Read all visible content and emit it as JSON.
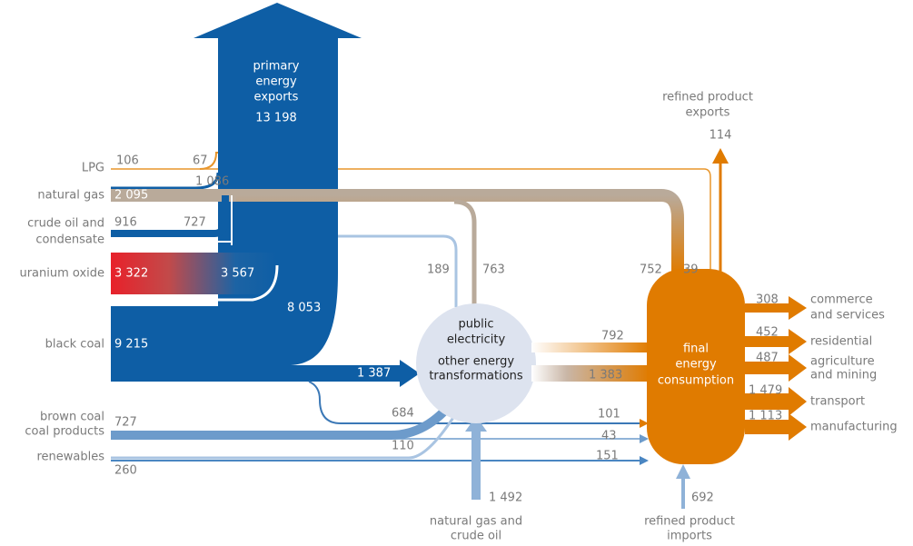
{
  "sources": [
    {
      "name": [
        "LPG"
      ],
      "value": "106"
    },
    {
      "name": [
        "natural gas"
      ],
      "value": "2 095"
    },
    {
      "name": [
        "crude oil and",
        "condensate"
      ],
      "value": "916"
    },
    {
      "name": [
        "uranium oxide"
      ],
      "value": "3 322"
    },
    {
      "name": [
        "black coal"
      ],
      "value": "9 215"
    },
    {
      "name": [
        "brown coal",
        "coal products"
      ],
      "value": "727"
    },
    {
      "name": [
        "renewables"
      ],
      "value": "260"
    }
  ],
  "exports": {
    "name": [
      "primary",
      "energy",
      "exports"
    ],
    "value": "13 198",
    "parts": [
      "67",
      "1 086",
      "727",
      "3 567",
      "8 053"
    ]
  },
  "transformation": {
    "name": [
      "public",
      "electricity",
      "other energy",
      "transformations"
    ],
    "inputs": [
      "189",
      "763",
      "1 387",
      "684",
      "110"
    ],
    "outputs": [
      "792",
      "1 383"
    ]
  },
  "gas_and_crude_input": {
    "name": [
      "natural gas and",
      "crude oil"
    ],
    "value": "1 492"
  },
  "final": {
    "name": [
      "final",
      "energy",
      "consumption"
    ],
    "inputs": [
      "752",
      "39",
      "101",
      "43",
      "151"
    ]
  },
  "refined_exports": {
    "name": [
      "refined product",
      "exports"
    ],
    "value": "114"
  },
  "refined_imports": {
    "name": [
      "refined product",
      "imports"
    ],
    "value": "692"
  },
  "uses": [
    {
      "name": [
        "commerce",
        "and services"
      ],
      "value": "308"
    },
    {
      "name": [
        "residential"
      ],
      "value": "452"
    },
    {
      "name": [
        "agriculture",
        "and mining"
      ],
      "value": "487"
    },
    {
      "name": [
        "transport"
      ],
      "value": "1 479"
    },
    {
      "name": [
        "manufacturing"
      ],
      "value": "1 113"
    }
  ]
}
